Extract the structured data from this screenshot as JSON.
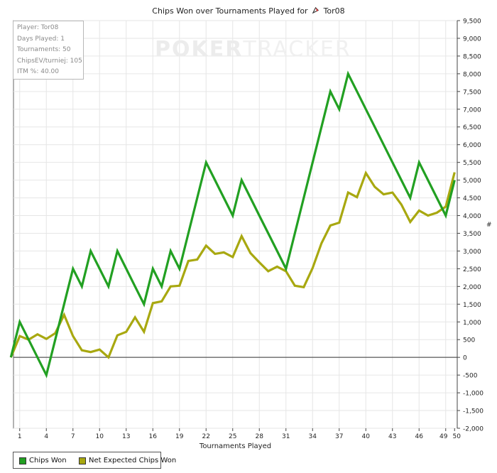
{
  "chart_data": {
    "type": "line",
    "title": "Chips Won over Tournaments Played for",
    "player_name": "Tor08",
    "watermark": "POKERTRACKER",
    "xlabel": "Tournaments Played",
    "ylabel": "#",
    "xlim": [
      0,
      50
    ],
    "ylim": [
      -2000,
      9500
    ],
    "x_ticks": [
      1,
      4,
      7,
      10,
      13,
      16,
      19,
      22,
      25,
      28,
      31,
      34,
      37,
      40,
      43,
      46,
      49,
      50
    ],
    "y_ticks": [
      -2000,
      -1500,
      -1000,
      -500,
      0,
      500,
      1000,
      1500,
      2000,
      2500,
      3000,
      3500,
      4000,
      4500,
      5000,
      5500,
      6000,
      6500,
      7000,
      7500,
      8000,
      8500,
      9000,
      9500
    ],
    "y_tick_labels": [
      "-2,000",
      "-1,500",
      "-1,000",
      "-500",
      "0",
      "500",
      "1,000",
      "1,500",
      "2,000",
      "2,500",
      "3,000",
      "3,500",
      "4,000",
      "4,500",
      "5,000",
      "5,500",
      "6,000",
      "6,500",
      "7,000",
      "7,500",
      "8,000",
      "8,500",
      "9,000",
      "9,500"
    ],
    "grid": true,
    "legend_position": "bottom-left",
    "x": [
      0,
      1,
      2,
      3,
      4,
      5,
      6,
      7,
      8,
      9,
      10,
      11,
      12,
      13,
      14,
      15,
      16,
      17,
      18,
      19,
      20,
      21,
      22,
      23,
      24,
      25,
      26,
      27,
      28,
      29,
      30,
      31,
      32,
      33,
      34,
      35,
      36,
      37,
      38,
      39,
      40,
      41,
      42,
      43,
      44,
      45,
      46,
      47,
      48,
      49,
      50
    ],
    "series": [
      {
        "name": "Chips Won",
        "color": "#22a022",
        "values": [
          0,
          1000,
          500,
          0,
          -500,
          500,
          1500,
          2500,
          2000,
          3000,
          2500,
          2000,
          3000,
          2500,
          2000,
          1500,
          2500,
          2000,
          3000,
          2500,
          3500,
          4500,
          5500,
          5000,
          4500,
          4000,
          5000,
          4500,
          4000,
          3500,
          3000,
          2500,
          3500,
          4500,
          5500,
          6500,
          7500,
          7000,
          8000,
          7500,
          7000,
          6500,
          6000,
          5500,
          5000,
          4500,
          5500,
          5000,
          4500,
          4000,
          5000
        ]
      },
      {
        "name": "Net Expected Chips Won",
        "color": "#a8a810",
        "values": [
          0,
          600,
          500,
          650,
          520,
          680,
          1200,
          600,
          200,
          150,
          220,
          0,
          620,
          720,
          1130,
          720,
          1530,
          1580,
          2000,
          2020,
          2720,
          2760,
          3150,
          2920,
          2960,
          2830,
          3420,
          2940,
          2680,
          2430,
          2560,
          2430,
          2020,
          1980,
          2520,
          3220,
          3720,
          3800,
          4650,
          4520,
          5200,
          4810,
          4600,
          4650,
          4310,
          3820,
          4140,
          4000,
          4080,
          4250,
          5220
        ]
      }
    ]
  },
  "infobox": {
    "player": "Player: Tor08",
    "days": "Days Played: 1",
    "tournaments": "Tournaments: 50",
    "chipsev": "ChipsEV/turniej: 105",
    "itm": "ITM %: 40.00"
  }
}
